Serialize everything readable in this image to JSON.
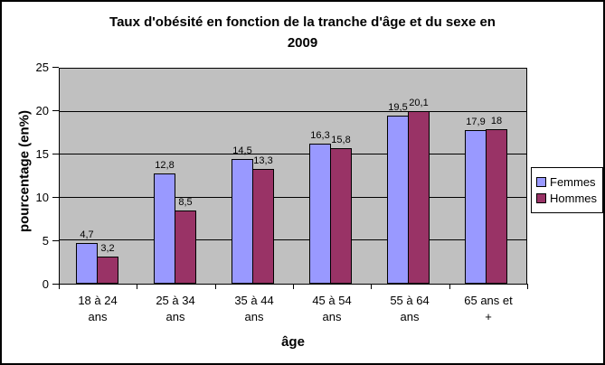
{
  "chart_data": {
    "type": "bar",
    "title": "Taux d'obésité en fonction de la tranche d'âge et du sexe en 2009",
    "title_lines": "Taux d'obésité en fonction de la tranche d'âge et du sexe en\n2009",
    "xlabel": "âge",
    "ylabel": "pourcentage (en%)",
    "categories": [
      "18 à 24 ans",
      "25 à 34 ans",
      "35 à 44 ans",
      "45 à 54 ans",
      "55 à 64 ans",
      "65 ans et +"
    ],
    "series": [
      {
        "name": "Femmes",
        "color": "#9999FF",
        "values": [
          4.7,
          12.8,
          14.5,
          16.3,
          19.5,
          17.9
        ],
        "labels": [
          "4,7",
          "12,8",
          "14,5",
          "16,3",
          "19,5",
          "17,9"
        ]
      },
      {
        "name": "Hommes",
        "color": "#993366",
        "values": [
          3.2,
          8.5,
          13.3,
          15.8,
          20.1,
          18
        ],
        "labels": [
          "3,2",
          "8,5",
          "13,3",
          "15,8",
          "20,1",
          "18"
        ]
      }
    ],
    "ylim": [
      0,
      25
    ],
    "ytick_step": 5,
    "ytick_labels": [
      "0",
      "5",
      "10",
      "15",
      "20",
      "25"
    ],
    "grid": true,
    "legend_position": "right",
    "legend_entries": [
      "Femmes",
      "Hommes"
    ],
    "colors": {
      "plot_background": "#C0C0C0",
      "gridline": "#000000",
      "chart_background": "#FFFFFF",
      "chart_border": "#000000",
      "text": "#000000"
    }
  }
}
